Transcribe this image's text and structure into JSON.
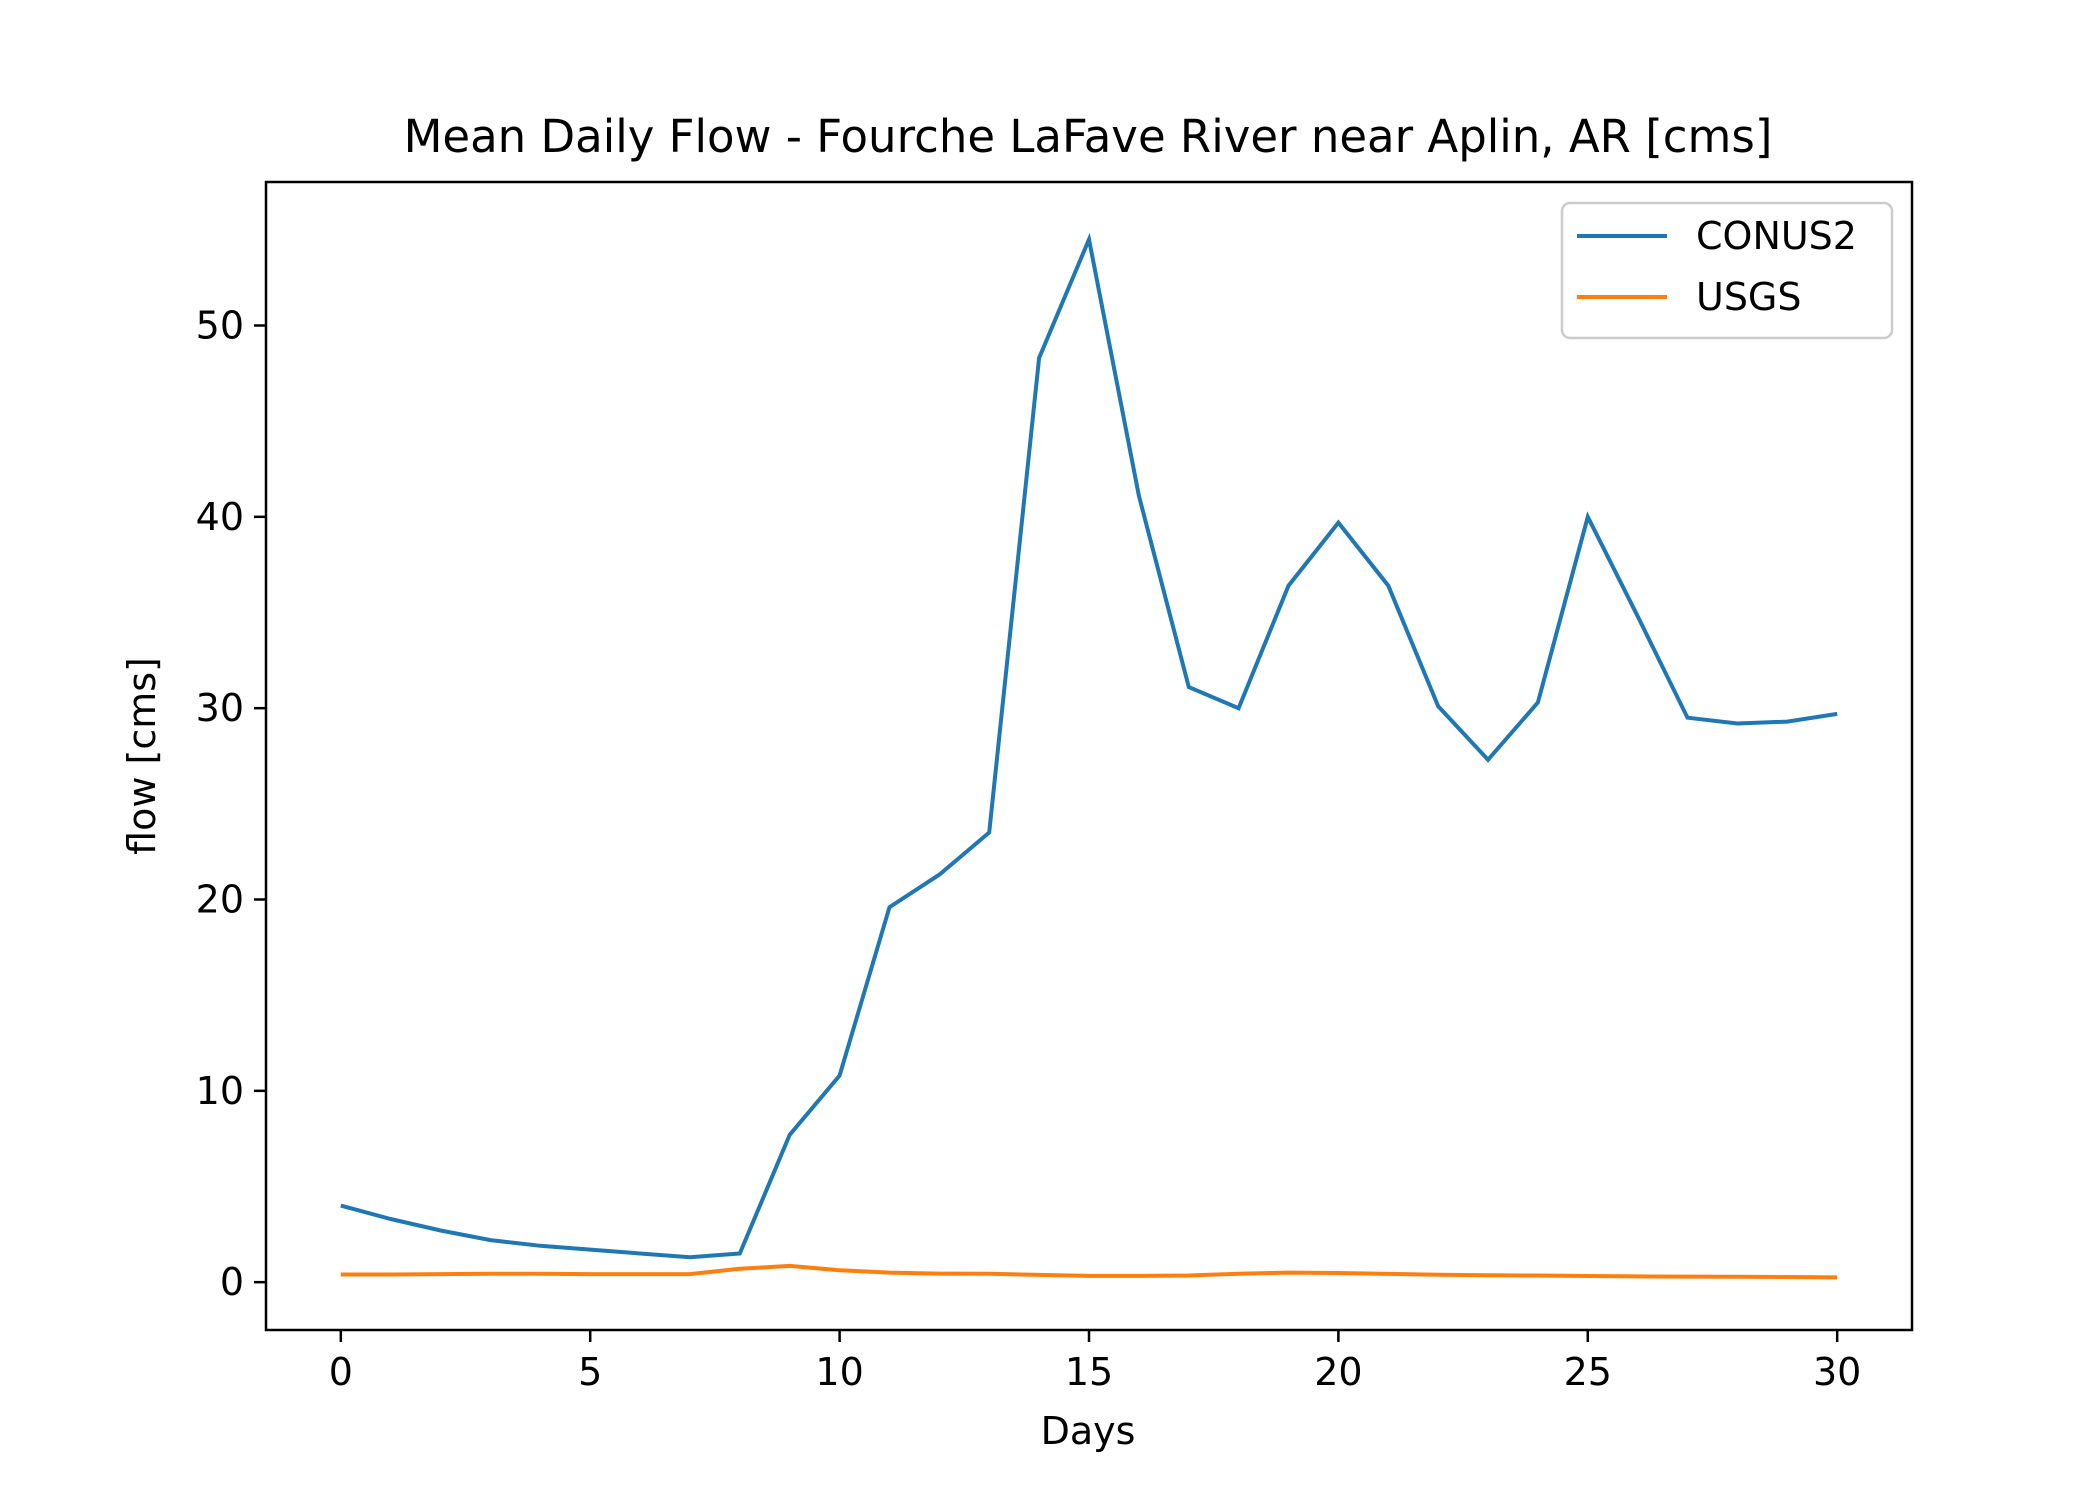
{
  "chart_data": {
    "type": "line",
    "title": "Mean Daily Flow - Fourche LaFave River near Aplin, AR [cms]",
    "xlabel": "Days",
    "ylabel": "flow [cms]",
    "xlim": [
      -1.5,
      31.5
    ],
    "ylim": [
      -2.5,
      57.5
    ],
    "xticks": [
      0,
      5,
      10,
      15,
      20,
      25,
      30
    ],
    "yticks": [
      0,
      10,
      20,
      30,
      40,
      50
    ],
    "grid": false,
    "legend_position": "upper right",
    "x": [
      0,
      1,
      2,
      3,
      4,
      5,
      6,
      7,
      8,
      9,
      10,
      11,
      12,
      13,
      14,
      15,
      16,
      17,
      18,
      19,
      20,
      21,
      22,
      23,
      24,
      25,
      26,
      27,
      28,
      29,
      30
    ],
    "series": [
      {
        "name": "CONUS2",
        "color": "#1f77b4",
        "values": [
          4.0,
          3.3,
          2.7,
          2.2,
          1.9,
          1.7,
          1.5,
          1.3,
          1.5,
          7.7,
          10.8,
          19.6,
          21.3,
          23.5,
          48.3,
          54.5,
          41.1,
          31.1,
          30.0,
          36.4,
          39.7,
          36.4,
          30.1,
          27.3,
          30.3,
          40.0,
          34.8,
          29.5,
          29.2,
          29.3,
          29.7
        ]
      },
      {
        "name": "USGS",
        "color": "#ff7f0e",
        "values": [
          0.4,
          0.4,
          0.42,
          0.44,
          0.44,
          0.42,
          0.42,
          0.42,
          0.7,
          0.85,
          0.62,
          0.5,
          0.45,
          0.44,
          0.38,
          0.33,
          0.33,
          0.35,
          0.44,
          0.5,
          0.48,
          0.43,
          0.39,
          0.36,
          0.35,
          0.32,
          0.3,
          0.29,
          0.28,
          0.27,
          0.25
        ]
      }
    ]
  }
}
